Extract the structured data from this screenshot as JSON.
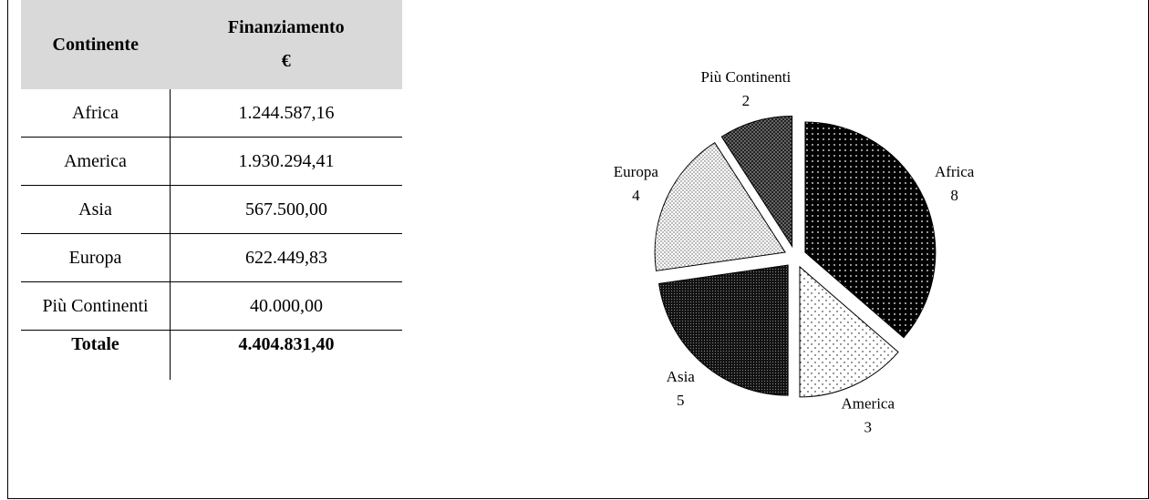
{
  "table": {
    "header": [
      "Continente",
      "Finanziamento",
      "€"
    ],
    "rows": [
      [
        "Africa",
        "1.244.587,16"
      ],
      [
        "America",
        "1.930.294,41"
      ],
      [
        "Asia",
        "567.500,00"
      ],
      [
        "Europa",
        "622.449,83"
      ],
      [
        "Più Continenti",
        "40.000,00"
      ]
    ],
    "total": [
      "Totale",
      "4.404.831,40"
    ]
  },
  "chart_data": {
    "type": "pie",
    "categories": [
      "Africa",
      "America",
      "Asia",
      "Europa",
      "Più Continenti"
    ],
    "values": [
      8,
      3,
      5,
      4,
      2
    ]
  }
}
